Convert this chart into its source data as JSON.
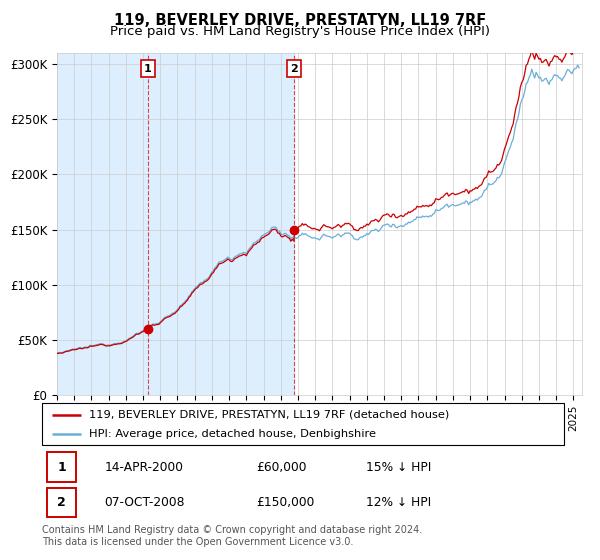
{
  "title": "119, BEVERLEY DRIVE, PRESTATYN, LL19 7RF",
  "subtitle": "Price paid vs. HM Land Registry's House Price Index (HPI)",
  "ylabel_ticks": [
    "£0",
    "£50K",
    "£100K",
    "£150K",
    "£200K",
    "£250K",
    "£300K"
  ],
  "ytick_values": [
    0,
    50000,
    100000,
    150000,
    200000,
    250000,
    300000
  ],
  "ylim": [
    0,
    310000
  ],
  "xlim_start": 1995.0,
  "xlim_end": 2025.5,
  "sale1": {
    "date_num": 2000.28,
    "price": 60000,
    "label": "1",
    "date_str": "14-APR-2000",
    "price_str": "£60,000",
    "pct_str": "15% ↓ HPI"
  },
  "sale2": {
    "date_num": 2008.77,
    "price": 150000,
    "label": "2",
    "date_str": "07-OCT-2008",
    "price_str": "£150,000",
    "pct_str": "12% ↓ HPI"
  },
  "legend_line1": "119, BEVERLEY DRIVE, PRESTATYN, LL19 7RF (detached house)",
  "legend_line2": "HPI: Average price, detached house, Denbighshire",
  "footnote": "Contains HM Land Registry data © Crown copyright and database right 2024.\nThis data is licensed under the Open Government Licence v3.0.",
  "hpi_color": "#6baed6",
  "price_color": "#cc0000",
  "shade_color": "#ddeeff",
  "background_color": "#ffffff",
  "grid_color": "#cccccc",
  "title_fontsize": 10.5,
  "subtitle_fontsize": 9.5,
  "axis_fontsize": 8.5
}
